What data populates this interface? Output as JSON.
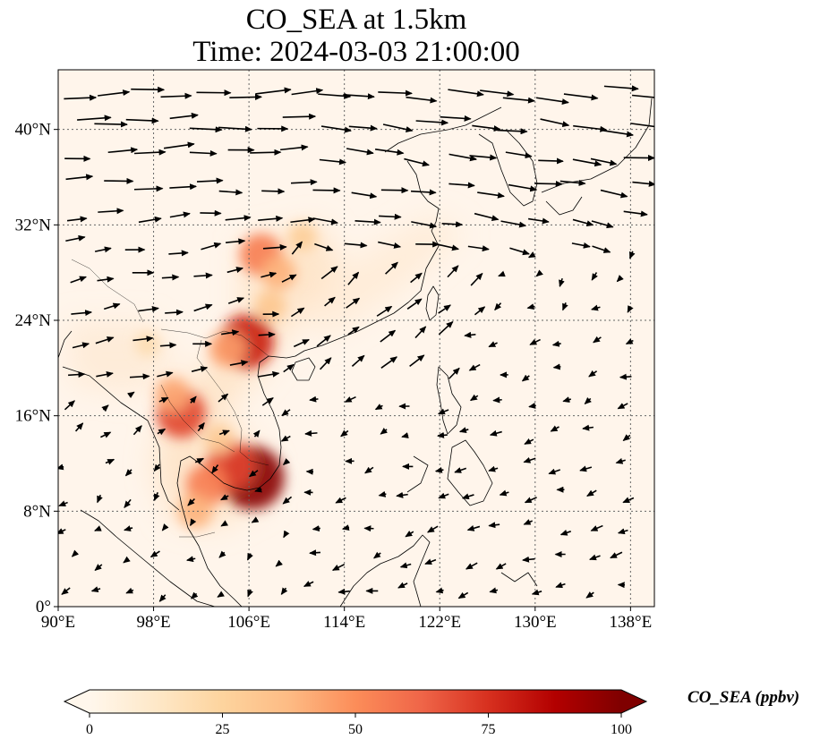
{
  "title": {
    "line1": "CO_SEA at 1.5km",
    "line2": "Time: 2024-03-03 21:00:00"
  },
  "map": {
    "lon_range": [
      90,
      140
    ],
    "lat_range": [
      0,
      45
    ],
    "lon_ticks": [
      {
        "value": 90,
        "label": "90°E"
      },
      {
        "value": 98,
        "label": "98°E"
      },
      {
        "value": 106,
        "label": "106°E"
      },
      {
        "value": 114,
        "label": "114°E"
      },
      {
        "value": 122,
        "label": "122°E"
      },
      {
        "value": 130,
        "label": "130°E"
      },
      {
        "value": 138,
        "label": "138°E"
      }
    ],
    "lat_ticks": [
      {
        "value": 0,
        "label": "0°"
      },
      {
        "value": 8,
        "label": "8°N"
      },
      {
        "value": 16,
        "label": "16°N"
      },
      {
        "value": 24,
        "label": "24°N"
      },
      {
        "value": 32,
        "label": "32°N"
      },
      {
        "value": 40,
        "label": "40°N"
      }
    ],
    "gridlines": true,
    "background_color": "#fff5eb",
    "coastline_color": "#000000",
    "hotspots": [
      {
        "lon": 106.3,
        "lat": 10.8,
        "value": 98
      },
      {
        "lon": 104.5,
        "lat": 11.8,
        "value": 70
      },
      {
        "lon": 102.5,
        "lat": 10.2,
        "value": 55
      },
      {
        "lon": 100.3,
        "lat": 16.2,
        "value": 70
      },
      {
        "lon": 99.6,
        "lat": 17.8,
        "value": 42
      },
      {
        "lon": 105.8,
        "lat": 22.2,
        "value": 80
      },
      {
        "lon": 104.2,
        "lat": 21.6,
        "value": 45
      },
      {
        "lon": 107.0,
        "lat": 29.5,
        "value": 55
      },
      {
        "lon": 108.5,
        "lat": 28.0,
        "value": 40
      },
      {
        "lon": 110.5,
        "lat": 31.0,
        "value": 28
      },
      {
        "lon": 107.8,
        "lat": 25.2,
        "value": 32
      },
      {
        "lon": 97.5,
        "lat": 22.0,
        "value": 20
      },
      {
        "lon": 101.5,
        "lat": 8.0,
        "value": 40
      },
      {
        "lon": 103.5,
        "lat": 14.0,
        "value": 30
      }
    ]
  },
  "colorbar": {
    "label": "CO_SEA (ppbv)",
    "min": 0,
    "max": 100,
    "extend": "both",
    "colormap": "OrRd",
    "colors": [
      "#fff7ec",
      "#fee8c8",
      "#fdd49e",
      "#fdbb84",
      "#fc8d59",
      "#ef6548",
      "#d7301f",
      "#b30000",
      "#7f0000"
    ],
    "ticks": [
      {
        "value": 0,
        "label": "0"
      },
      {
        "value": 25,
        "label": "25"
      },
      {
        "value": 50,
        "label": "50"
      },
      {
        "value": 75,
        "label": "75"
      },
      {
        "value": 100,
        "label": "100"
      }
    ]
  }
}
